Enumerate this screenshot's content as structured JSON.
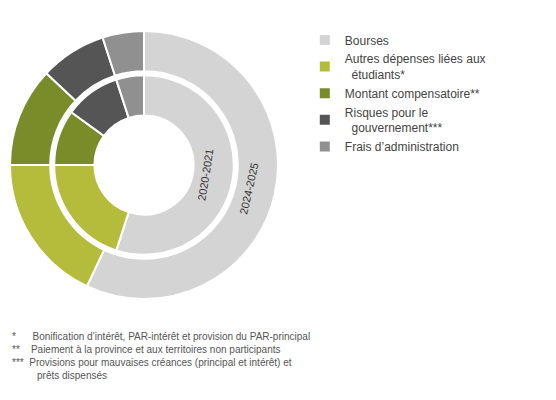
{
  "chart_data": {
    "type": "pie",
    "categories": [
      "Bourses",
      "Autres dépenses liées aux\n  étudiants*",
      "Montant compensatoire**",
      "Risques pour le\n  gouvernement***",
      "Frais d’administration"
    ],
    "series": [
      {
        "name": "2024-2025",
        "values": [
          57,
          18,
          12,
          8,
          5
        ]
      },
      {
        "name": "2020-2021",
        "values": [
          55,
          20,
          10,
          10,
          5
        ]
      }
    ],
    "colors": [
      "#d4d4d4",
      "#b5bb3a",
      "#7a8b2a",
      "#555555",
      "#909090"
    ],
    "legend": "right",
    "annotations": [
      "*      Bonification d’intérêt, PAR-intérêt et provision du PAR-principal",
      "**    Paiement à la province et aux territoires non participants",
      "***  Provisions pour mauvaises créances (principal et intérêt) et\n         prêts dispensés"
    ]
  }
}
